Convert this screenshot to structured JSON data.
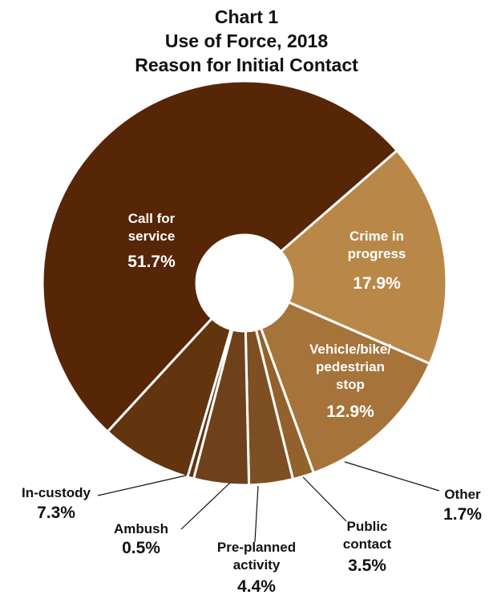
{
  "chart_title": {
    "line1": "Chart 1",
    "line2": "Use of Force, 2018",
    "line3": "Reason for Initial Contact"
  },
  "chart_data": {
    "type": "pie",
    "donut": true,
    "title": "Chart 1 Use of Force, 2018 Reason for Initial Contact",
    "start": "top-right, clockwise",
    "unit": "%",
    "slices": [
      {
        "label": [
          "Crime in",
          "progress"
        ],
        "value": 17.9,
        "display": "17.9%",
        "color": "#b98848",
        "placement": "inside"
      },
      {
        "label": [
          "Vehicle/bike/",
          "pedestrian",
          "stop"
        ],
        "value": 12.9,
        "display": "12.9%",
        "color": "#a6743a",
        "placement": "inside"
      },
      {
        "label": [
          "Other"
        ],
        "value": 1.7,
        "display": "1.7%",
        "color": "#93612b",
        "placement": "outside-right"
      },
      {
        "label": [
          "Public",
          "contact"
        ],
        "value": 3.5,
        "display": "3.5%",
        "color": "#7e4f22",
        "placement": "outside-bottom"
      },
      {
        "label": [
          "Pre-planned",
          "activity"
        ],
        "value": 4.4,
        "display": "4.4%",
        "color": "#6e411a",
        "placement": "outside-bottom"
      },
      {
        "label": [
          "Ambush"
        ],
        "value": 0.5,
        "display": "0.5%",
        "color": "#5e3412",
        "placement": "outside-bottom"
      },
      {
        "label": [
          "In-custody"
        ],
        "value": 7.3,
        "display": "7.3%",
        "color": "#62350f",
        "placement": "outside-left"
      },
      {
        "label": [
          "Call for",
          "service"
        ],
        "value": 51.7,
        "display": "51.7%",
        "color": "#562607",
        "placement": "inside"
      }
    ]
  }
}
